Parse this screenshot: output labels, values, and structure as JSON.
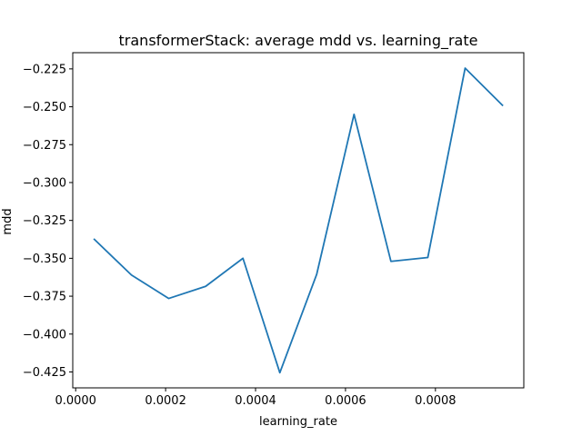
{
  "chart_data": {
    "type": "line",
    "title": "transformerStack: average mdd vs. learning_rate",
    "xlabel": "learning_rate",
    "ylabel": "mdd",
    "xlim": [
      -6.5e-06,
      0.0009965
    ],
    "ylim": [
      -0.4355,
      -0.2143
    ],
    "xticks": [
      0.0,
      0.0002,
      0.0004,
      0.0006,
      0.0008
    ],
    "xtick_labels": [
      "0.0000",
      "0.0002",
      "0.0004",
      "0.0006",
      "0.0008"
    ],
    "yticks": [
      -0.425,
      -0.4,
      -0.375,
      -0.35,
      -0.325,
      -0.3,
      -0.275,
      -0.25,
      -0.225
    ],
    "ytick_labels": [
      "−0.425",
      "−0.400",
      "−0.375",
      "−0.350",
      "−0.325",
      "−0.300",
      "−0.275",
      "−0.250",
      "−0.225"
    ],
    "grid": false,
    "series": [
      {
        "color": "#1f77b4",
        "x": [
          4.15e-05,
          0.000124,
          0.000207,
          0.000289,
          0.000372,
          0.000454,
          0.000536,
          0.000619,
          0.000701,
          0.000783,
          0.000866,
          0.000949
        ],
        "y": [
          -0.3375,
          -0.361,
          -0.3765,
          -0.3685,
          -0.35,
          -0.4255,
          -0.3605,
          -0.255,
          -0.352,
          -0.3495,
          -0.2245,
          -0.249
        ]
      }
    ]
  }
}
